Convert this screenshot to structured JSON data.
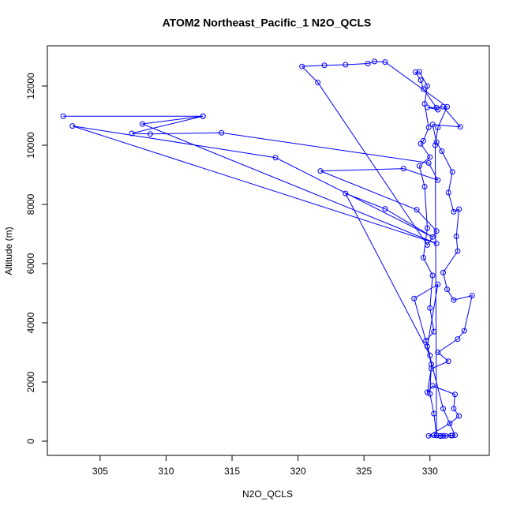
{
  "chart_data": {
    "type": "line",
    "title": "ATOM2 Northeast_Pacific_1 N2O_QCLS",
    "x_label": "N2O_QCLS",
    "y_label": "Altitude (m)",
    "color": "#0000ff",
    "markers": true,
    "xlim": [
      301,
      334.5
    ],
    "ylim": [
      -480,
      13360
    ],
    "xticks": [
      305,
      310,
      315,
      320,
      325,
      330
    ],
    "yticks": [
      0,
      2000,
      4000,
      6000,
      8000,
      10000,
      12000
    ],
    "x": [
      330.8,
      331.2,
      331.6,
      331.7,
      330.3,
      330.5,
      331.0,
      329.9,
      331.5,
      332.2,
      331.8,
      331.9,
      330.2,
      329.8,
      330.1,
      331.4,
      330.6,
      332.1,
      332.6,
      333.2,
      331.8,
      331.3,
      331.0,
      332.1,
      332.0,
      332.2,
      331.8,
      331.4,
      331.7,
      330.9,
      330.5,
      330.2,
      332.3,
      331.0,
      330.5,
      329.8,
      330.6,
      329.5,
      329.3,
      328.9,
      329.2,
      329.8,
      329.6,
      329.9,
      329.5,
      329.3,
      330.0,
      329.2,
      329.6,
      329.8,
      329.5,
      330.2,
      330.0,
      330.3,
      329.7,
      330.1,
      330.0,
      330.3,
      330.5,
      330.4,
      330.6,
      331.3,
      326.6,
      325.8,
      325.3,
      323.6,
      322.0,
      320.3,
      321.5,
      329.8,
      330.5,
      329.0,
      321.7,
      328.0,
      330.6,
      329.9,
      314.2,
      308.8,
      307.4,
      312.8,
      302.2,
      312.8,
      308.2,
      330.5,
      302.9,
      318.3,
      330.2,
      326.6,
      323.6,
      330.0,
      328.8,
      330.6,
      329.8,
      331.0,
      331.9,
      330.8
    ],
    "values": [
      170,
      180,
      190,
      190,
      200,
      190,
      180,
      180,
      600,
      850,
      1100,
      1580,
      1870,
      1650,
      2450,
      2700,
      3000,
      3450,
      3730,
      4920,
      4770,
      5130,
      5700,
      6420,
      6920,
      7840,
      7750,
      8400,
      9100,
      9800,
      10100,
      10700,
      10620,
      11300,
      11270,
      11280,
      11200,
      11900,
      12200,
      12470,
      12480,
      12000,
      11400,
      10600,
      10150,
      10050,
      9600,
      9300,
      8600,
      7200,
      6200,
      5600,
      4500,
      3700,
      3400,
      2600,
      1600,
      930,
      200,
      10000,
      10600,
      11300,
      12810,
      12830,
      12760,
      12720,
      12700,
      12660,
      12120,
      6630,
      7100,
      7820,
      9130,
      9210,
      8820,
      9400,
      10420,
      10380,
      10400,
      10980,
      10980,
      10980,
      10720,
      6680,
      10650,
      9580,
      6900,
      7850,
      8370,
      2900,
      4820,
      5300,
      3200,
      1100,
      200,
      180
    ]
  }
}
